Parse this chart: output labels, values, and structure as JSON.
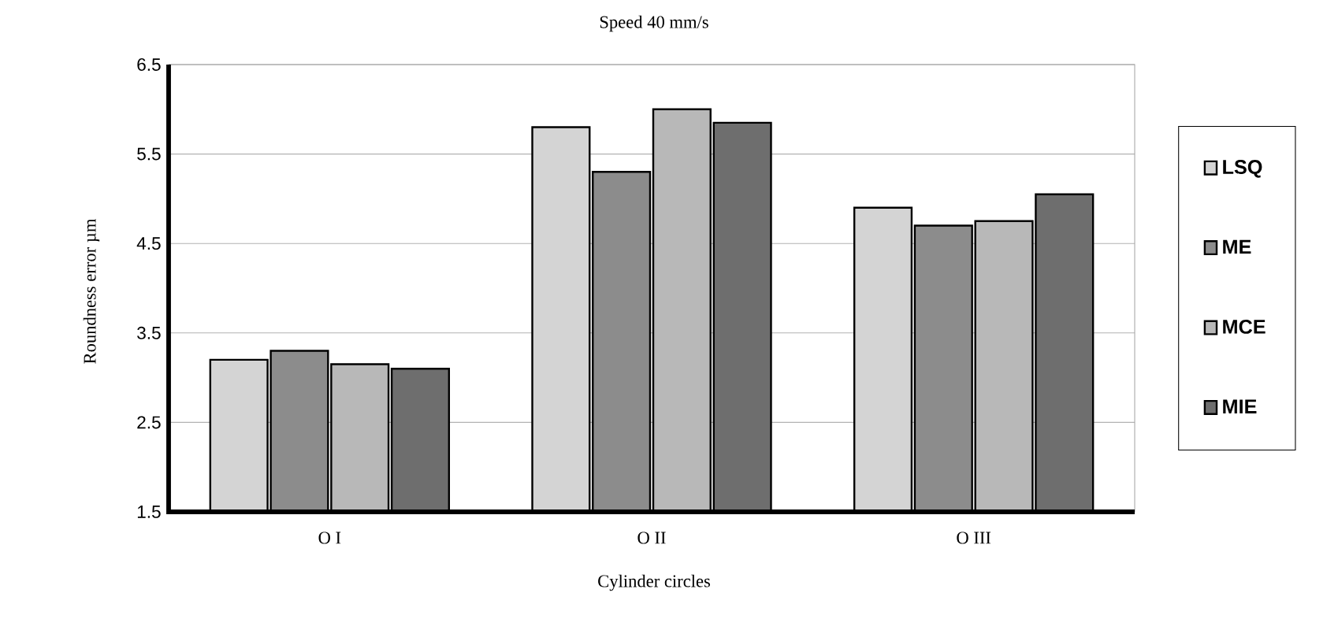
{
  "chart_data": {
    "type": "bar",
    "title": "Speed 40 mm/s",
    "xlabel": "Cylinder circles",
    "ylabel": "Roundness  error  µm",
    "categories": [
      "O I",
      "O II",
      "O III"
    ],
    "series": [
      {
        "name": "LSQ",
        "color": "#d4d4d4",
        "values": [
          3.2,
          5.8,
          4.9
        ]
      },
      {
        "name": "ME",
        "color": "#8c8c8c",
        "values": [
          3.3,
          5.3,
          4.7
        ]
      },
      {
        "name": "MCE",
        "color": "#b8b8b8",
        "values": [
          3.15,
          6.0,
          4.75
        ]
      },
      {
        "name": "MIE",
        "color": "#6e6e6e",
        "values": [
          3.1,
          5.85,
          5.05
        ]
      }
    ],
    "ylim": [
      1.5,
      6.5
    ],
    "yticks": [
      1.5,
      2.5,
      3.5,
      4.5,
      5.5,
      6.5
    ],
    "grid": "y",
    "legend": "right"
  }
}
